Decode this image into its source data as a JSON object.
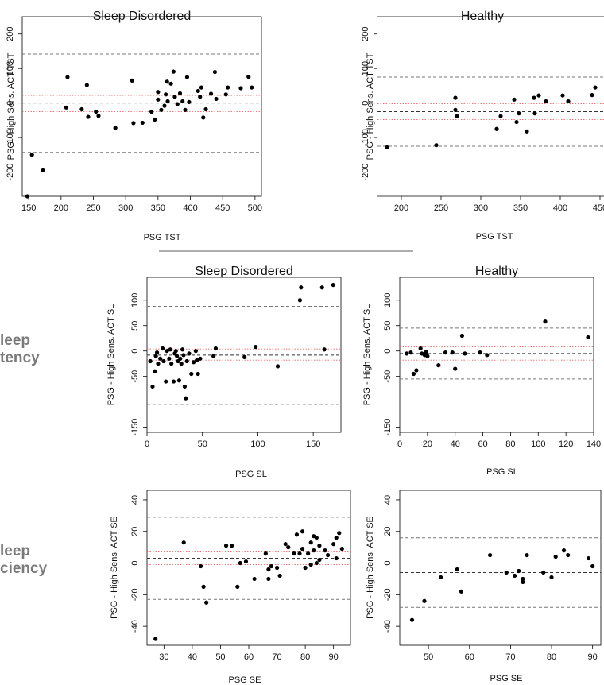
{
  "row_labels": {
    "sl": [
      "leep",
      "tency"
    ],
    "se": [
      "leep",
      "ciency"
    ]
  },
  "colors": {
    "point": "#000000",
    "limit_line": "#777777",
    "ci_line": "#e06666",
    "mean_line": "#333333",
    "axis": "#000000",
    "divider": "#9a9a9a"
  },
  "chart_data": [
    {
      "type": "scatter",
      "title": "Sleep Disordered",
      "xlabel": "PSG TST",
      "ylabel": "PSG - High Sens. ACT TST",
      "xlim": [
        140,
        510
      ],
      "ylim": [
        -270,
        250
      ],
      "xticks": [
        150,
        200,
        250,
        300,
        350,
        400,
        450,
        500
      ],
      "yticks": [
        -200,
        -100,
        0,
        100,
        200
      ],
      "frame": true,
      "hlines": [
        {
          "y": 142,
          "kind": "limit"
        },
        {
          "y": 0,
          "kind": "mean"
        },
        {
          "y": -143,
          "kind": "limit"
        },
        {
          "y": 22,
          "kind": "ci"
        },
        {
          "y": -25,
          "kind": "ci"
        }
      ],
      "points": [
        [
          148,
          -270
        ],
        [
          155,
          -150
        ],
        [
          172,
          -195
        ],
        [
          208,
          -13
        ],
        [
          210,
          75
        ],
        [
          232,
          -18
        ],
        [
          240,
          52
        ],
        [
          242,
          -40
        ],
        [
          254,
          -25
        ],
        [
          258,
          -37
        ],
        [
          284,
          -72
        ],
        [
          310,
          65
        ],
        [
          312,
          -58
        ],
        [
          326,
          -57
        ],
        [
          340,
          -25
        ],
        [
          345,
          -48
        ],
        [
          350,
          32
        ],
        [
          350,
          10
        ],
        [
          355,
          -20
        ],
        [
          360,
          -8
        ],
        [
          362,
          25
        ],
        [
          364,
          62
        ],
        [
          365,
          5
        ],
        [
          370,
          56
        ],
        [
          374,
          91
        ],
        [
          376,
          18
        ],
        [
          380,
          -3
        ],
        [
          384,
          28
        ],
        [
          388,
          5
        ],
        [
          392,
          -20
        ],
        [
          395,
          75
        ],
        [
          398,
          3
        ],
        [
          412,
          35
        ],
        [
          415,
          18
        ],
        [
          417,
          45
        ],
        [
          420,
          -42
        ],
        [
          424,
          -18
        ],
        [
          432,
          27
        ],
        [
          438,
          90
        ],
        [
          440,
          12
        ],
        [
          455,
          25
        ],
        [
          458,
          45
        ],
        [
          478,
          43
        ],
        [
          490,
          76
        ],
        [
          495,
          45
        ]
      ]
    },
    {
      "type": "scatter",
      "title": "Healthy",
      "xlabel": "PSG TST",
      "ylabel": "PSG - High Sens. ACT TST",
      "xlim": [
        170,
        460
      ],
      "ylim": [
        -270,
        250
      ],
      "xticks": [
        200,
        250,
        300,
        350,
        400,
        450
      ],
      "yticks": [
        -200,
        -100,
        0,
        100,
        200
      ],
      "frame": false,
      "hlines": [
        {
          "y": 75,
          "kind": "limit"
        },
        {
          "y": -25,
          "kind": "mean"
        },
        {
          "y": -125,
          "kind": "limit"
        },
        {
          "y": -2,
          "kind": "ci"
        },
        {
          "y": -48,
          "kind": "ci"
        }
      ],
      "points": [
        [
          182,
          -128
        ],
        [
          244,
          -122
        ],
        [
          268,
          15
        ],
        [
          268,
          -20
        ],
        [
          270,
          -38
        ],
        [
          320,
          -75
        ],
        [
          325,
          -38
        ],
        [
          342,
          10
        ],
        [
          345,
          -55
        ],
        [
          348,
          -30
        ],
        [
          358,
          -82
        ],
        [
          367,
          15
        ],
        [
          368,
          -30
        ],
        [
          373,
          22
        ],
        [
          382,
          5
        ],
        [
          403,
          22
        ],
        [
          410,
          5
        ],
        [
          440,
          23
        ],
        [
          444,
          45
        ]
      ]
    },
    {
      "type": "scatter",
      "title": "Sleep Disordered",
      "xlabel": "PSG SL",
      "ylabel": "PSG - High Sens. ACT SL",
      "xlim": [
        0,
        175
      ],
      "ylim": [
        -160,
        145
      ],
      "xticks": [
        0,
        50,
        100,
        150
      ],
      "yticks": [
        -150,
        -50,
        0,
        50,
        100
      ],
      "frame": true,
      "hlines": [
        {
          "y": 88,
          "kind": "limit"
        },
        {
          "y": -8,
          "kind": "mean"
        },
        {
          "y": -105,
          "kind": "limit"
        },
        {
          "y": 4,
          "kind": "ci"
        },
        {
          "y": -18,
          "kind": "ci"
        }
      ],
      "points": [
        [
          3,
          -20
        ],
        [
          5,
          -70
        ],
        [
          7,
          -40
        ],
        [
          8,
          -10
        ],
        [
          9,
          -3
        ],
        [
          10,
          -25
        ],
        [
          12,
          -15
        ],
        [
          14,
          5
        ],
        [
          15,
          -20
        ],
        [
          17,
          -60
        ],
        [
          18,
          0
        ],
        [
          20,
          -15
        ],
        [
          21,
          3
        ],
        [
          22,
          -25
        ],
        [
          24,
          -60
        ],
        [
          25,
          -5
        ],
        [
          26,
          0
        ],
        [
          27,
          -10
        ],
        [
          28,
          -20
        ],
        [
          29,
          -58
        ],
        [
          30,
          -15
        ],
        [
          31,
          -25
        ],
        [
          32,
          3
        ],
        [
          33,
          -8
        ],
        [
          34,
          -70
        ],
        [
          35,
          -93
        ],
        [
          36,
          -20
        ],
        [
          38,
          -5
        ],
        [
          40,
          -45
        ],
        [
          42,
          -22
        ],
        [
          44,
          0
        ],
        [
          45,
          -18
        ],
        [
          46,
          -45
        ],
        [
          48,
          -15
        ],
        [
          60,
          -10
        ],
        [
          62,
          5
        ],
        [
          88,
          -12
        ],
        [
          98,
          8
        ],
        [
          118,
          -30
        ],
        [
          138,
          100
        ],
        [
          139,
          125
        ],
        [
          158,
          125
        ],
        [
          160,
          3
        ],
        [
          168,
          130
        ]
      ]
    },
    {
      "type": "scatter",
      "title": "Healthy",
      "xlabel": "PSG SL",
      "ylabel": "PSG - High Sens. ACT SL",
      "xlim": [
        0,
        140
      ],
      "ylim": [
        -160,
        145
      ],
      "xticks": [
        0,
        20,
        40,
        60,
        80,
        100,
        120,
        140
      ],
      "yticks": [
        -150,
        -50,
        0,
        50,
        100
      ],
      "frame": true,
      "hlines": [
        {
          "y": 45,
          "kind": "limit"
        },
        {
          "y": -5,
          "kind": "mean"
        },
        {
          "y": -55,
          "kind": "limit"
        },
        {
          "y": 8,
          "kind": "ci"
        },
        {
          "y": -18,
          "kind": "ci"
        }
      ],
      "points": [
        [
          5,
          -5
        ],
        [
          8,
          -3
        ],
        [
          10,
          -45
        ],
        [
          12,
          -38
        ],
        [
          15,
          5
        ],
        [
          16,
          -5
        ],
        [
          18,
          -8
        ],
        [
          19,
          -2
        ],
        [
          20,
          -10
        ],
        [
          28,
          -28
        ],
        [
          33,
          -3
        ],
        [
          38,
          -3
        ],
        [
          40,
          -35
        ],
        [
          45,
          30
        ],
        [
          47,
          -5
        ],
        [
          58,
          -3
        ],
        [
          63,
          -8
        ],
        [
          105,
          58
        ],
        [
          136,
          27
        ]
      ]
    },
    {
      "type": "scatter",
      "title": "",
      "xlabel": "PSG SE",
      "ylabel": "PSG - High Sens. ACT SE",
      "xlim": [
        24,
        96
      ],
      "ylim": [
        -52,
        46
      ],
      "xticks": [
        30,
        40,
        50,
        60,
        70,
        80,
        90
      ],
      "yticks": [
        -40,
        -20,
        0,
        20,
        40
      ],
      "frame": true,
      "hlines": [
        {
          "y": 29,
          "kind": "limit"
        },
        {
          "y": 3,
          "kind": "mean"
        },
        {
          "y": -23,
          "kind": "limit"
        },
        {
          "y": 7,
          "kind": "ci"
        },
        {
          "y": -1,
          "kind": "ci"
        }
      ],
      "points": [
        [
          27,
          -48
        ],
        [
          37,
          13
        ],
        [
          43,
          -2
        ],
        [
          44,
          -15
        ],
        [
          45,
          -25
        ],
        [
          52,
          11
        ],
        [
          54,
          11
        ],
        [
          56,
          -15
        ],
        [
          57,
          0
        ],
        [
          59,
          1
        ],
        [
          62,
          -10
        ],
        [
          66,
          6
        ],
        [
          67,
          -10
        ],
        [
          67,
          -4
        ],
        [
          68,
          -2
        ],
        [
          70,
          -3
        ],
        [
          71,
          -8
        ],
        [
          73,
          12
        ],
        [
          74,
          10
        ],
        [
          76,
          6
        ],
        [
          77,
          18
        ],
        [
          78,
          6
        ],
        [
          79,
          20
        ],
        [
          79,
          9
        ],
        [
          80,
          -3
        ],
        [
          81,
          6
        ],
        [
          82,
          -1
        ],
        [
          82,
          13
        ],
        [
          83,
          17
        ],
        [
          83,
          8
        ],
        [
          84,
          0
        ],
        [
          84,
          16
        ],
        [
          85,
          2
        ],
        [
          85,
          11
        ],
        [
          87,
          8
        ],
        [
          88,
          5
        ],
        [
          90,
          12
        ],
        [
          91,
          3
        ],
        [
          91,
          16
        ],
        [
          92,
          19
        ],
        [
          93,
          9
        ]
      ]
    },
    {
      "type": "scatter",
      "title": "",
      "xlabel": "PSG SE",
      "ylabel": "PSG - High Sens. ACT SE",
      "xlim": [
        43,
        92
      ],
      "ylim": [
        -52,
        46
      ],
      "xticks": [
        50,
        60,
        70,
        80,
        90
      ],
      "yticks": [
        -40,
        -20,
        0,
        20,
        40
      ],
      "frame": true,
      "hlines": [
        {
          "y": 16,
          "kind": "limit"
        },
        {
          "y": -6,
          "kind": "mean"
        },
        {
          "y": -28,
          "kind": "limit"
        },
        {
          "y": 0,
          "kind": "ci"
        },
        {
          "y": -12,
          "kind": "ci"
        }
      ],
      "points": [
        [
          46,
          -36
        ],
        [
          49,
          -24
        ],
        [
          53,
          -9
        ],
        [
          57,
          -4
        ],
        [
          58,
          -18
        ],
        [
          65,
          5
        ],
        [
          69,
          -6
        ],
        [
          71,
          -8
        ],
        [
          72,
          -5
        ],
        [
          73,
          -10
        ],
        [
          73,
          -12
        ],
        [
          74,
          5
        ],
        [
          78,
          -6
        ],
        [
          80,
          -9
        ],
        [
          81,
          4
        ],
        [
          83,
          8
        ],
        [
          84,
          5
        ],
        [
          89,
          3
        ],
        [
          90,
          -2
        ]
      ]
    }
  ]
}
